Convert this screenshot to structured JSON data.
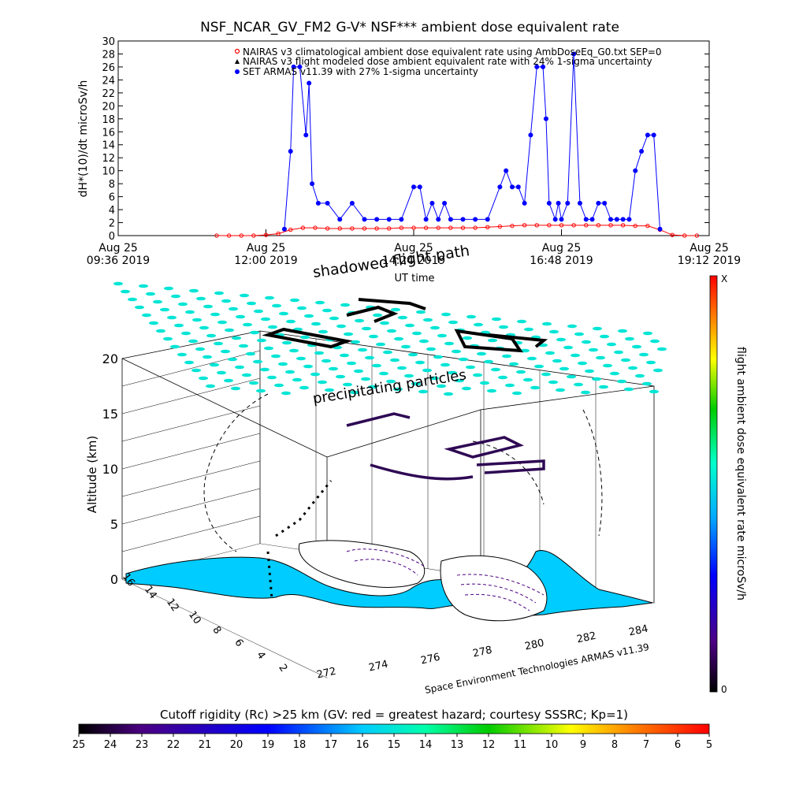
{
  "chart_data": [
    {
      "type": "line",
      "title": "NSF_NCAR_GV_FM2 G-V* NSF*** ambient dose equivalent rate",
      "ylabel": "dH*(10)/dt microSv/h",
      "xlabel": "UT time",
      "ylim": [
        0,
        30
      ],
      "yticks": [
        0,
        2,
        4,
        6,
        8,
        10,
        12,
        14,
        16,
        18,
        20,
        22,
        24,
        26,
        28,
        30
      ],
      "xlim": [
        9.6,
        19.2
      ],
      "xticks": [
        {
          "x": 9.6,
          "line1": "Aug 25",
          "line2": "09:36 2019"
        },
        {
          "x": 12.0,
          "line1": "Aug 25",
          "line2": "12:00 2019"
        },
        {
          "x": 14.4,
          "line1": "Aug 25",
          "line2": "14:24 2019"
        },
        {
          "x": 16.8,
          "line1": "Aug 25",
          "line2": "16:48 2019"
        },
        {
          "x": 19.2,
          "line1": "Aug 25",
          "line2": "19:12 2019"
        }
      ],
      "legend": [
        "NAIRAS v3 climatological ambient dose equivalent rate using AmbDoseEq_G0.txt SEP=0",
        "NAIRAS v3 flight modeled dose ambient equivalent rate with 24% 1-sigma uncertainty",
        "SET ARMAS v11.39 with 27% 1-sigma uncertainty"
      ],
      "legend_placement": "top-right",
      "series": [
        {
          "key": "nairas_clim",
          "color": "#ff0000",
          "marker": "circle",
          "x": [
            11.2,
            11.4,
            11.6,
            11.8,
            12.0,
            12.2,
            12.4,
            12.6,
            12.8,
            13.0,
            13.2,
            13.4,
            13.6,
            13.8,
            14.0,
            14.2,
            14.4,
            14.6,
            14.8,
            15.0,
            15.2,
            15.4,
            15.6,
            15.8,
            16.0,
            16.2,
            16.4,
            16.6,
            16.8,
            17.0,
            17.2,
            17.4,
            17.6,
            17.8,
            18.0,
            18.2,
            18.4,
            18.6,
            18.8,
            19.0
          ],
          "values": [
            0,
            0,
            0,
            0,
            0.1,
            0.3,
            0.9,
            1.2,
            1.2,
            1.1,
            1.1,
            1.1,
            1.1,
            1.1,
            1.1,
            1.2,
            1.2,
            1.2,
            1.2,
            1.2,
            1.2,
            1.2,
            1.3,
            1.4,
            1.5,
            1.6,
            1.6,
            1.6,
            1.6,
            1.6,
            1.6,
            1.6,
            1.6,
            1.6,
            1.5,
            1.5,
            0.9,
            0.1,
            0,
            0
          ]
        },
        {
          "key": "set_armas",
          "color": "#0000ff",
          "marker": "circle",
          "x": [
            12.3,
            12.4,
            12.45,
            12.55,
            12.65,
            12.7,
            12.75,
            12.85,
            13.0,
            13.2,
            13.4,
            13.6,
            13.8,
            14.0,
            14.2,
            14.4,
            14.5,
            14.6,
            14.7,
            14.8,
            14.9,
            15.0,
            15.2,
            15.4,
            15.6,
            15.8,
            15.9,
            16.0,
            16.1,
            16.2,
            16.3,
            16.4,
            16.5,
            16.55,
            16.6,
            16.7,
            16.75,
            16.8,
            16.9,
            17.0,
            17.1,
            17.2,
            17.3,
            17.4,
            17.5,
            17.6,
            17.7,
            17.8,
            17.9,
            18.0,
            18.1,
            18.2,
            18.3,
            18.4
          ],
          "values": [
            1,
            13,
            26,
            26,
            15.5,
            23.5,
            8,
            5,
            5,
            2.5,
            5,
            2.5,
            2.5,
            2.5,
            2.5,
            7.5,
            7.5,
            2.5,
            5,
            2.5,
            5,
            2.5,
            2.5,
            2.5,
            2.5,
            7.5,
            10,
            7.5,
            7.5,
            5,
            15.5,
            26,
            26,
            18,
            5,
            2.5,
            5,
            2.5,
            5,
            28,
            5,
            2.5,
            2.5,
            5,
            5,
            2.5,
            2.5,
            2.5,
            2.5,
            10,
            13,
            15.5,
            15.5,
            1
          ]
        }
      ]
    },
    {
      "type": "scatter",
      "title": "",
      "zlabel": "Altitude (km)",
      "zticks": [
        0,
        5,
        10,
        15,
        20
      ],
      "xticks": [
        "272",
        "274",
        "276",
        "278",
        "280",
        "282",
        "284"
      ],
      "yticks": [
        "2",
        "4",
        "6",
        "8",
        "10",
        "12",
        "14",
        "16"
      ],
      "annotations": [
        "shadowed flight path",
        "precipitating particles",
        "Space Environment Technologies ARMAS v11.39"
      ],
      "grid": true
    }
  ],
  "colorbar_right": {
    "label": "flight ambient dose equivalent rate microSv/h",
    "top_label": "X",
    "bottom_label": "0"
  },
  "colorbar_bottom": {
    "title": "Cutoff rigidity (Rc) >25 km (GV: red = greatest hazard; courtesy SSSRC; Kp=1)",
    "ticks": [
      "25",
      "24",
      "23",
      "22",
      "21",
      "20",
      "19",
      "18",
      "17",
      "16",
      "15",
      "14",
      "13",
      "12",
      "11",
      "10",
      "9",
      "8",
      "7",
      "6",
      "5"
    ]
  }
}
